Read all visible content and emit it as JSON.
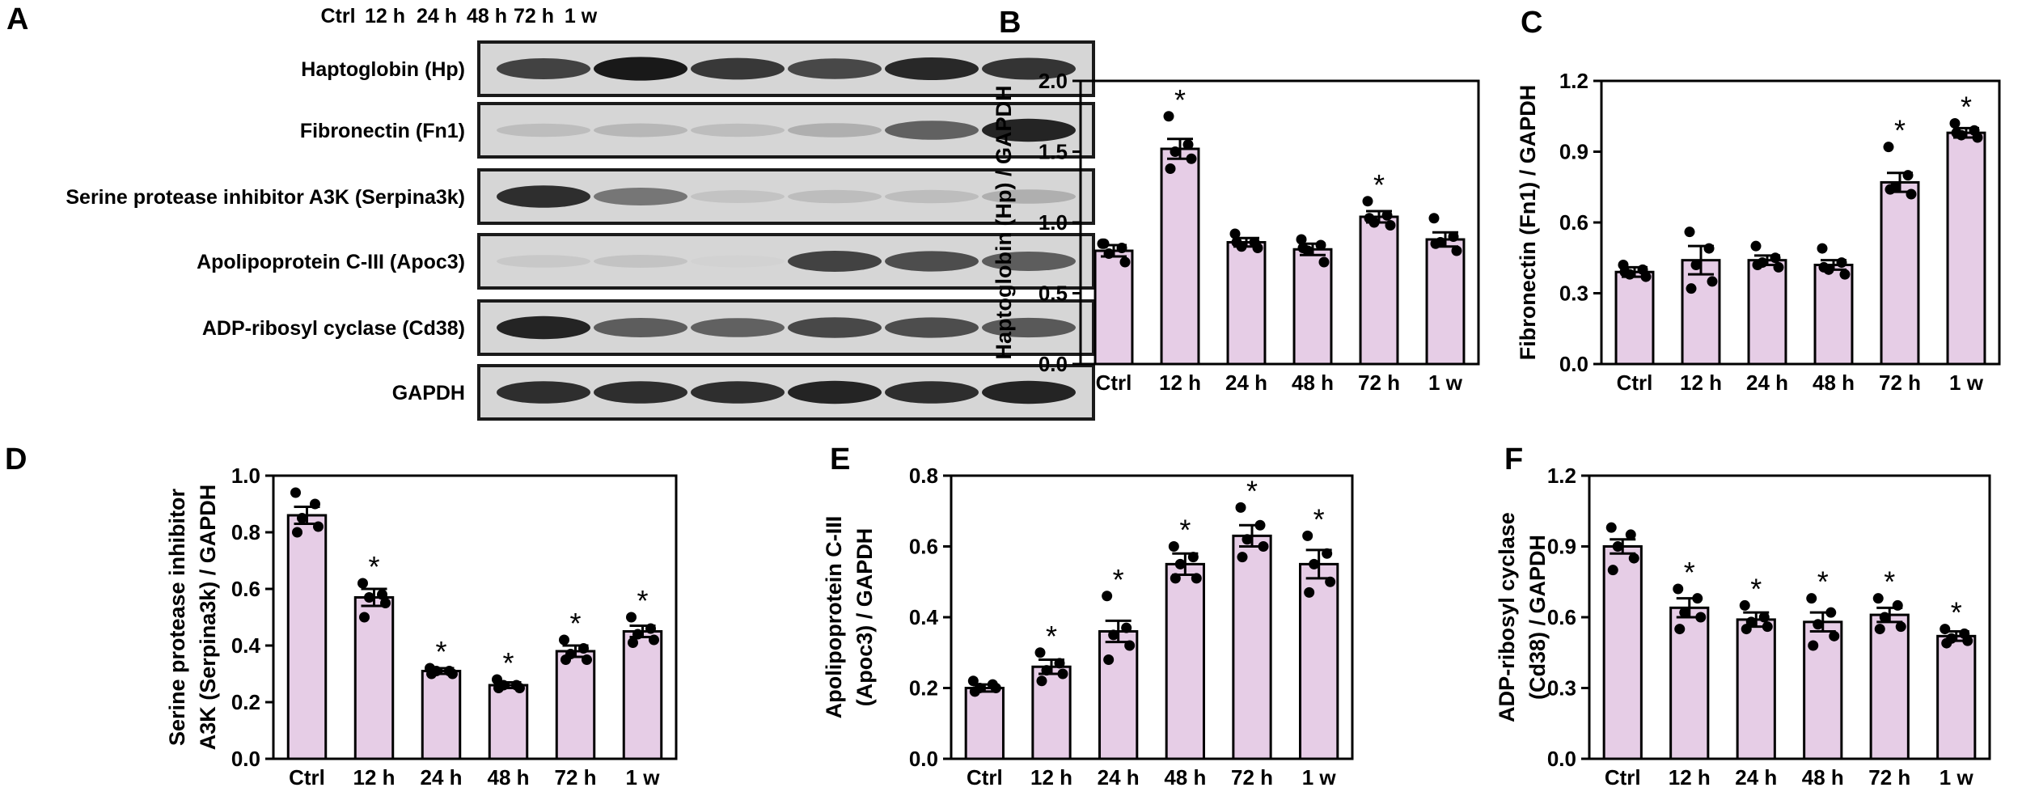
{
  "blot": {
    "panel_label": "A",
    "lanes": [
      "Ctrl",
      "12 h",
      "24 h",
      "48 h",
      "72 h",
      "1 w"
    ],
    "rows": [
      {
        "label": "Haptoglobin (Hp)",
        "intensity": [
          0.75,
          0.95,
          0.8,
          0.72,
          0.88,
          0.82
        ]
      },
      {
        "label": "Fibronectin (Fn1)",
        "intensity": [
          0.15,
          0.18,
          0.15,
          0.22,
          0.6,
          0.9
        ]
      },
      {
        "label": "Serine protease inhibitor A3K (Serpina3k)",
        "intensity": [
          0.85,
          0.5,
          0.12,
          0.15,
          0.15,
          0.22
        ]
      },
      {
        "label": "Apolipoprotein C-III (Apoc3)",
        "intensity": [
          0.1,
          0.12,
          0.05,
          0.75,
          0.7,
          0.62
        ]
      },
      {
        "label": "ADP-ribosyl cyclase (Cd38)",
        "intensity": [
          0.9,
          0.62,
          0.6,
          0.72,
          0.7,
          0.64
        ]
      },
      {
        "label": "GAPDH",
        "intensity": [
          0.85,
          0.85,
          0.85,
          0.9,
          0.85,
          0.9
        ]
      }
    ]
  },
  "colors": {
    "bar_fill": "#e6cde6",
    "bar_stroke": "#000000",
    "point": "#000000"
  },
  "chart_data": [
    {
      "panel_label": "B",
      "type": "bar",
      "categories": [
        "Ctrl",
        "12 h",
        "24 h",
        "48 h",
        "72 h",
        "1 w"
      ],
      "values": [
        0.8,
        1.52,
        0.86,
        0.81,
        1.04,
        0.88
      ],
      "sem": [
        0.04,
        0.07,
        0.03,
        0.04,
        0.04,
        0.05
      ],
      "points": [
        [
          0.85,
          0.82,
          0.78,
          0.72,
          0.85
        ],
        [
          1.75,
          1.55,
          1.5,
          1.45,
          1.38
        ],
        [
          0.92,
          0.86,
          0.83,
          0.82,
          0.86
        ],
        [
          0.88,
          0.84,
          0.8,
          0.72,
          0.82
        ],
        [
          1.15,
          1.05,
          1.0,
          0.98,
          1.03
        ],
        [
          1.03,
          0.9,
          0.86,
          0.8,
          0.85
        ]
      ],
      "significant": [
        false,
        true,
        false,
        false,
        true,
        false
      ],
      "ylabel": "Haptoglobin (Hp) / GAPDH",
      "ylim": [
        0,
        2.0
      ],
      "yticks": [
        "0.0",
        "0.5",
        "1.0",
        "1.5",
        "2.0"
      ]
    },
    {
      "panel_label": "C",
      "type": "bar",
      "categories": [
        "Ctrl",
        "12 h",
        "24 h",
        "48 h",
        "72 h",
        "1 w"
      ],
      "values": [
        0.39,
        0.44,
        0.44,
        0.42,
        0.77,
        0.98
      ],
      "sem": [
        0.02,
        0.06,
        0.02,
        0.02,
        0.04,
        0.02
      ],
      "points": [
        [
          0.42,
          0.4,
          0.38,
          0.37,
          0.39
        ],
        [
          0.56,
          0.49,
          0.42,
          0.35,
          0.32
        ],
        [
          0.5,
          0.45,
          0.43,
          0.41,
          0.42
        ],
        [
          0.49,
          0.43,
          0.4,
          0.38,
          0.41
        ],
        [
          0.92,
          0.8,
          0.75,
          0.72,
          0.74
        ],
        [
          1.02,
          0.99,
          0.97,
          0.96,
          0.98
        ]
      ],
      "significant": [
        false,
        false,
        false,
        false,
        true,
        true
      ],
      "ylabel": "Fibronectin (Fn1) / GAPDH",
      "ylim": [
        0,
        1.2
      ],
      "yticks": [
        "0.0",
        "0.3",
        "0.6",
        "0.9",
        "1.2"
      ]
    },
    {
      "panel_label": "D",
      "type": "bar",
      "categories": [
        "Ctrl",
        "12 h",
        "24 h",
        "48 h",
        "72 h",
        "1 w"
      ],
      "values": [
        0.86,
        0.57,
        0.31,
        0.26,
        0.38,
        0.45
      ],
      "sem": [
        0.03,
        0.03,
        0.01,
        0.01,
        0.02,
        0.02
      ],
      "points": [
        [
          0.94,
          0.9,
          0.85,
          0.82,
          0.8
        ],
        [
          0.62,
          0.58,
          0.57,
          0.55,
          0.5
        ],
        [
          0.32,
          0.31,
          0.31,
          0.3,
          0.3
        ],
        [
          0.28,
          0.26,
          0.26,
          0.25,
          0.25
        ],
        [
          0.42,
          0.39,
          0.37,
          0.35,
          0.35
        ],
        [
          0.5,
          0.46,
          0.44,
          0.42,
          0.41
        ]
      ],
      "significant": [
        false,
        true,
        true,
        true,
        true,
        true
      ],
      "ylabel_lines": [
        "Serine protease inhibitor",
        "A3K (Serpina3k) / GAPDH"
      ],
      "ylim": [
        0,
        1.0
      ],
      "yticks": [
        "0.0",
        "0.2",
        "0.4",
        "0.6",
        "0.8",
        "1.0"
      ]
    },
    {
      "panel_label": "E",
      "type": "bar",
      "categories": [
        "Ctrl",
        "12 h",
        "24 h",
        "48 h",
        "72 h",
        "1 w"
      ],
      "values": [
        0.2,
        0.26,
        0.36,
        0.55,
        0.63,
        0.55
      ],
      "sem": [
        0.01,
        0.02,
        0.03,
        0.03,
        0.03,
        0.04
      ],
      "points": [
        [
          0.22,
          0.21,
          0.2,
          0.2,
          0.19
        ],
        [
          0.3,
          0.27,
          0.25,
          0.24,
          0.22
        ],
        [
          0.46,
          0.37,
          0.35,
          0.32,
          0.28
        ],
        [
          0.6,
          0.57,
          0.55,
          0.51,
          0.51
        ],
        [
          0.71,
          0.66,
          0.62,
          0.6,
          0.57
        ],
        [
          0.63,
          0.58,
          0.55,
          0.5,
          0.47
        ]
      ],
      "significant": [
        false,
        true,
        true,
        true,
        true,
        true
      ],
      "ylabel_lines": [
        "Apolipoprotein C-III",
        "(Apoc3) / GAPDH"
      ],
      "ylim": [
        0,
        0.8
      ],
      "yticks": [
        "0.0",
        "0.2",
        "0.4",
        "0.6",
        "0.8"
      ]
    },
    {
      "panel_label": "F",
      "type": "bar",
      "categories": [
        "Ctrl",
        "12 h",
        "24 h",
        "48 h",
        "72 h",
        "1 w"
      ],
      "values": [
        0.9,
        0.64,
        0.59,
        0.58,
        0.61,
        0.52
      ],
      "sem": [
        0.03,
        0.04,
        0.03,
        0.04,
        0.03,
        0.02
      ],
      "points": [
        [
          0.98,
          0.95,
          0.9,
          0.85,
          0.8
        ],
        [
          0.72,
          0.68,
          0.62,
          0.6,
          0.55
        ],
        [
          0.65,
          0.6,
          0.58,
          0.56,
          0.55
        ],
        [
          0.68,
          0.62,
          0.57,
          0.52,
          0.48
        ],
        [
          0.68,
          0.65,
          0.6,
          0.56,
          0.55
        ],
        [
          0.55,
          0.53,
          0.51,
          0.5,
          0.49
        ]
      ],
      "significant": [
        false,
        true,
        true,
        true,
        true,
        true
      ],
      "ylabel_lines": [
        "ADP-ribosyl cyclase",
        "(Cd38) / GAPDH"
      ],
      "ylim": [
        0,
        1.2
      ],
      "yticks": [
        "0.0",
        "0.3",
        "0.6",
        "0.9",
        "1.2"
      ]
    }
  ]
}
